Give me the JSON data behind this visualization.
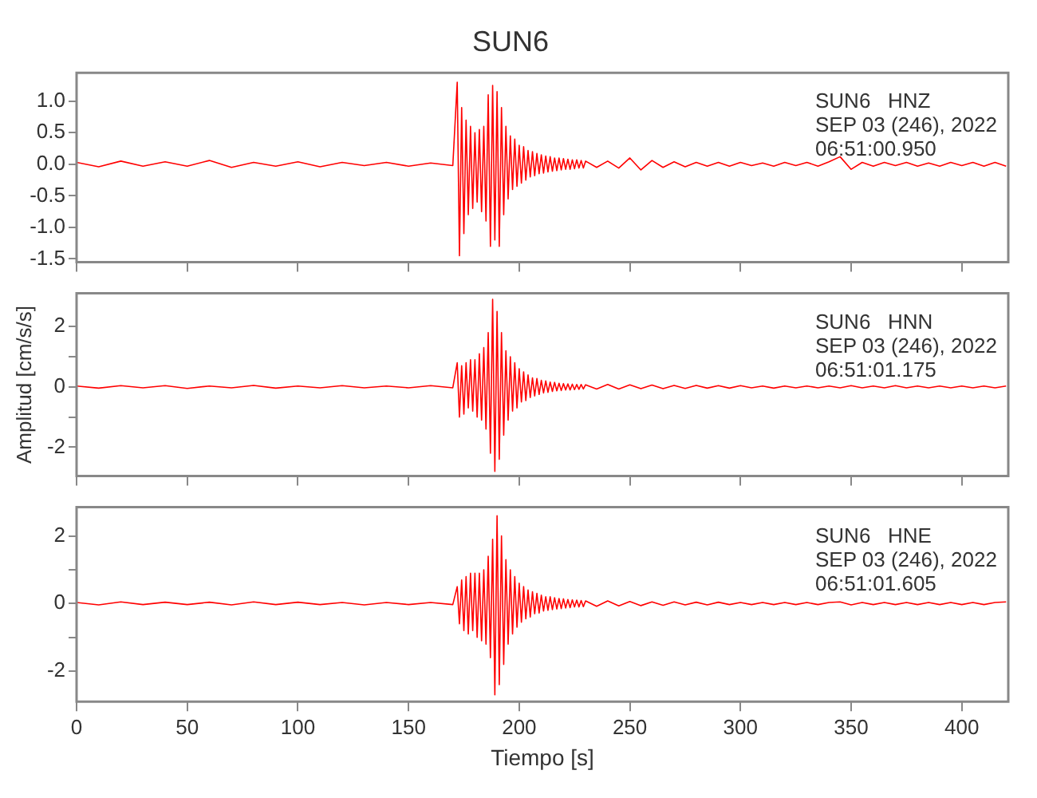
{
  "chart_data": [
    {
      "type": "line",
      "title": "SUN6",
      "marker": "none",
      "grid": false,
      "legend": false,
      "tick_labels": "y",
      "annotations": [
        "SUN6   HNZ",
        "SEP 03 (246), 2022",
        "06:51:00.950"
      ],
      "xlim": [
        0,
        421
      ],
      "xticks": [
        0,
        50,
        100,
        150,
        200,
        250,
        300,
        350,
        400
      ],
      "ylim": [
        -1.55,
        1.45
      ],
      "yticks": [
        {
          "value": -1.5,
          "label": "-1.5"
        },
        {
          "value": -1,
          "label": "-1.0"
        },
        -0.5,
        {
          "value": 0,
          "label": "0.0"
        },
        0.5,
        {
          "value": 1,
          "label": "1.0"
        }
      ],
      "x": [
        0,
        10,
        20,
        30,
        40,
        50,
        60,
        70,
        80,
        90,
        100,
        110,
        120,
        130,
        140,
        150,
        160,
        170,
        172,
        173,
        174,
        175,
        176,
        177,
        178,
        179,
        180,
        181,
        182,
        183,
        184,
        185,
        186,
        187,
        188,
        189,
        190,
        191,
        192,
        193,
        194,
        195,
        196,
        197,
        198,
        199,
        200,
        201,
        202,
        203,
        204,
        205,
        206,
        207,
        208,
        209,
        210,
        211,
        212,
        213,
        214,
        215,
        216,
        217,
        218,
        219,
        220,
        221,
        222,
        223,
        224,
        225,
        226,
        227,
        228,
        229,
        230,
        235,
        240,
        245,
        250,
        255,
        260,
        265,
        270,
        275,
        280,
        285,
        290,
        295,
        300,
        305,
        310,
        315,
        320,
        325,
        330,
        335,
        340,
        345,
        350,
        355,
        360,
        365,
        370,
        375,
        380,
        385,
        390,
        395,
        400,
        405,
        410,
        415,
        420
      ],
      "series": [
        {
          "color": "#ff0000",
          "values": [
            0.03,
            -0.04,
            0.05,
            -0.03,
            0.04,
            -0.03,
            0.06,
            -0.05,
            0.03,
            -0.03,
            0.04,
            -0.04,
            0.03,
            -0.02,
            0.03,
            -0.03,
            0.02,
            -0.02,
            1.3,
            -1.45,
            0.9,
            -1.1,
            0.7,
            -0.8,
            0.6,
            -0.7,
            0.5,
            -0.6,
            0.55,
            -0.75,
            0.6,
            -0.9,
            1.1,
            -1.3,
            1.25,
            -1.2,
            1.15,
            -1.3,
            0.9,
            -0.8,
            0.6,
            -0.55,
            0.45,
            -0.4,
            0.4,
            -0.35,
            0.3,
            -0.3,
            0.28,
            -0.25,
            0.22,
            -0.2,
            0.2,
            -0.18,
            0.17,
            -0.15,
            0.15,
            -0.14,
            0.13,
            -0.12,
            0.12,
            -0.11,
            0.1,
            -0.1,
            0.1,
            -0.09,
            0.09,
            -0.08,
            0.08,
            -0.08,
            0.07,
            -0.07,
            0.07,
            -0.06,
            0.06,
            -0.06,
            0.05,
            -0.05,
            0.05,
            -0.06,
            0.1,
            -0.09,
            0.06,
            -0.05,
            0.04,
            -0.04,
            0.03,
            -0.03,
            0.03,
            -0.03,
            0.03,
            -0.02,
            0.02,
            -0.03,
            0.03,
            -0.02,
            0.03,
            -0.03,
            0.04,
            0.12,
            -0.08,
            0.03,
            -0.03,
            0.03,
            -0.02,
            0.03,
            -0.03,
            0.02,
            -0.03,
            0.03,
            -0.02,
            0.03,
            -0.03,
            0.03,
            -0.03
          ]
        }
      ]
    },
    {
      "type": "line",
      "ylabel": "Amplitud [cm/s/s]",
      "marker": "none",
      "grid": false,
      "legend": false,
      "tick_labels": "y",
      "annotations": [
        "SUN6   HNN",
        "SEP 03 (246), 2022",
        "06:51:01.175"
      ],
      "xlim": [
        0,
        421
      ],
      "xticks": [
        0,
        50,
        100,
        150,
        200,
        250,
        300,
        350,
        400
      ],
      "ylim": [
        -2.95,
        3.1
      ],
      "yticks": [
        -2,
        {
          "value": -1,
          "label": null
        },
        0,
        {
          "value": 1,
          "label": null
        },
        2
      ],
      "x": [
        0,
        10,
        20,
        30,
        40,
        50,
        60,
        70,
        80,
        90,
        100,
        110,
        120,
        130,
        140,
        150,
        160,
        170,
        172,
        173,
        174,
        175,
        176,
        177,
        178,
        179,
        180,
        181,
        182,
        183,
        184,
        185,
        186,
        187,
        188,
        189,
        190,
        191,
        192,
        193,
        194,
        195,
        196,
        197,
        198,
        199,
        200,
        201,
        202,
        203,
        204,
        205,
        206,
        207,
        208,
        209,
        210,
        211,
        212,
        213,
        214,
        215,
        216,
        217,
        218,
        219,
        220,
        221,
        222,
        223,
        224,
        225,
        226,
        227,
        228,
        229,
        230,
        235,
        240,
        245,
        250,
        255,
        260,
        265,
        270,
        275,
        280,
        285,
        290,
        295,
        300,
        305,
        310,
        315,
        320,
        325,
        330,
        335,
        340,
        345,
        350,
        355,
        360,
        365,
        370,
        375,
        380,
        385,
        390,
        395,
        400,
        405,
        410,
        415,
        420
      ],
      "series": [
        {
          "color": "#ff0000",
          "values": [
            0.03,
            -0.04,
            0.04,
            -0.03,
            0.04,
            -0.05,
            0.03,
            -0.03,
            0.05,
            -0.04,
            0.03,
            -0.03,
            0.04,
            -0.03,
            0.03,
            -0.03,
            0.04,
            -0.03,
            0.8,
            -1.0,
            0.7,
            -0.9,
            0.8,
            -0.7,
            0.9,
            -0.8,
            0.9,
            -1.0,
            1.1,
            -1.1,
            1.3,
            -1.4,
            1.8,
            -2.2,
            2.9,
            -2.8,
            2.5,
            -2.4,
            1.8,
            -1.6,
            1.2,
            -1.1,
            1.0,
            -0.8,
            0.8,
            -0.7,
            0.6,
            -0.5,
            0.5,
            -0.45,
            0.4,
            -0.35,
            0.3,
            -0.3,
            0.28,
            -0.25,
            0.22,
            -0.2,
            0.2,
            -0.18,
            0.16,
            -0.15,
            0.15,
            -0.13,
            0.12,
            -0.12,
            0.11,
            -0.1,
            0.1,
            -0.1,
            0.09,
            -0.09,
            0.08,
            -0.08,
            0.08,
            -0.07,
            0.07,
            -0.07,
            0.08,
            -0.07,
            0.07,
            -0.06,
            0.06,
            -0.06,
            0.05,
            -0.05,
            0.05,
            -0.04,
            0.04,
            -0.04,
            0.04,
            -0.03,
            0.03,
            -0.04,
            0.03,
            -0.03,
            0.03,
            -0.03,
            0.03,
            -0.03,
            0.04,
            -0.03,
            0.03,
            -0.03,
            0.04,
            -0.03,
            0.03,
            -0.03,
            0.03,
            -0.03,
            0.03,
            -0.03,
            0.03,
            -0.03,
            0.03
          ]
        }
      ]
    },
    {
      "type": "line",
      "xlabel": "Tiempo [s]",
      "marker": "none",
      "grid": false,
      "legend": false,
      "annotations": [
        "SUN6   HNE",
        "SEP 03 (246), 2022",
        "06:51:01.605"
      ],
      "xlim": [
        0,
        421
      ],
      "xticks": [
        0,
        50,
        100,
        150,
        200,
        250,
        300,
        350,
        400
      ],
      "ylim": [
        -2.9,
        2.85
      ],
      "yticks": [
        -2,
        {
          "value": -1,
          "label": null
        },
        0,
        {
          "value": 1,
          "label": null
        },
        2
      ],
      "x": [
        0,
        10,
        20,
        30,
        40,
        50,
        60,
        70,
        80,
        90,
        100,
        110,
        120,
        130,
        140,
        150,
        160,
        170,
        172,
        173,
        174,
        175,
        176,
        177,
        178,
        179,
        180,
        181,
        182,
        183,
        184,
        185,
        186,
        187,
        188,
        189,
        190,
        191,
        192,
        193,
        194,
        195,
        196,
        197,
        198,
        199,
        200,
        201,
        202,
        203,
        204,
        205,
        206,
        207,
        208,
        209,
        210,
        211,
        212,
        213,
        214,
        215,
        216,
        217,
        218,
        219,
        220,
        221,
        222,
        223,
        224,
        225,
        226,
        227,
        228,
        229,
        230,
        235,
        240,
        245,
        250,
        255,
        260,
        265,
        270,
        275,
        280,
        285,
        290,
        295,
        300,
        305,
        310,
        315,
        320,
        325,
        330,
        335,
        340,
        345,
        350,
        355,
        360,
        365,
        370,
        375,
        380,
        385,
        390,
        395,
        400,
        405,
        410,
        415,
        420
      ],
      "series": [
        {
          "color": "#ff0000",
          "values": [
            0.03,
            -0.04,
            0.05,
            -0.03,
            0.04,
            -0.03,
            0.04,
            -0.04,
            0.05,
            -0.03,
            0.04,
            -0.03,
            0.03,
            -0.04,
            0.03,
            -0.03,
            0.03,
            -0.03,
            0.5,
            -0.6,
            0.7,
            -0.8,
            0.8,
            -0.9,
            0.9,
            -0.8,
            0.9,
            -1.0,
            0.9,
            -1.1,
            1.0,
            -1.2,
            1.4,
            -1.6,
            1.9,
            -2.7,
            2.6,
            -2.4,
            2.0,
            -1.8,
            1.3,
            -1.2,
            1.0,
            -0.9,
            0.8,
            -0.7,
            0.6,
            -0.55,
            0.5,
            -0.45,
            0.4,
            -0.4,
            0.35,
            -0.3,
            0.3,
            -0.28,
            0.25,
            -0.22,
            0.2,
            -0.2,
            0.2,
            -0.18,
            0.17,
            -0.16,
            0.15,
            -0.15,
            0.14,
            -0.13,
            0.12,
            -0.12,
            0.11,
            -0.1,
            0.1,
            -0.1,
            0.09,
            -0.09,
            0.08,
            -0.08,
            0.08,
            -0.07,
            0.06,
            -0.06,
            0.05,
            -0.05,
            0.05,
            -0.04,
            0.04,
            -0.04,
            0.04,
            -0.03,
            0.03,
            -0.03,
            0.03,
            -0.03,
            0.03,
            -0.03,
            0.03,
            -0.03,
            0.03,
            0.05,
            -0.04,
            0.03,
            -0.03,
            0.03,
            -0.03,
            0.03,
            -0.03,
            0.03,
            -0.03,
            0.03,
            -0.03,
            0.03,
            -0.03,
            0.03,
            0.05
          ]
        }
      ]
    }
  ]
}
